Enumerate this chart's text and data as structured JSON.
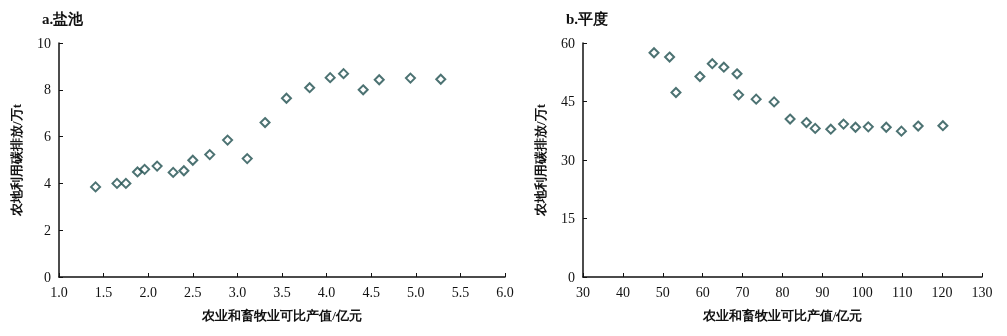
{
  "chart_data": [
    {
      "type": "scatter",
      "title": "a.盐池",
      "xlabel": "农业和畜牧业可比产值/亿元",
      "ylabel": "农地利用碳排放/万t",
      "marker": "diamond",
      "grid": false,
      "x": [
        1.41,
        1.65,
        1.75,
        1.88,
        1.96,
        2.1,
        2.28,
        2.4,
        2.5,
        2.69,
        2.89,
        3.11,
        3.31,
        3.55,
        3.81,
        4.04,
        4.19,
        4.41,
        4.59,
        4.94,
        5.28
      ],
      "series": [
        {
          "color": "#1f4f4f",
          "values": [
            3.85,
            4.0,
            4.0,
            4.49,
            4.6,
            4.74,
            4.47,
            4.54,
            4.99,
            5.23,
            5.85,
            5.06,
            6.6,
            7.64,
            8.09,
            8.52,
            8.69,
            8.0,
            8.43,
            8.5,
            8.45
          ]
        }
      ],
      "xlim": [
        1,
        6
      ],
      "xticks": [
        {
          "value": 1,
          "label": "1.0"
        },
        {
          "value": 1.5,
          "label": "1.5"
        },
        {
          "value": 2,
          "label": "2.0"
        },
        {
          "value": 2.5,
          "label": "2.5"
        },
        {
          "value": 3,
          "label": "3.0"
        },
        {
          "value": 3.5,
          "label": "3.5"
        },
        {
          "value": 4,
          "label": "4.0"
        },
        {
          "value": 4.5,
          "label": "4.5"
        },
        {
          "value": 5,
          "label": "5.0"
        },
        {
          "value": 5.5,
          "label": "5.5"
        },
        {
          "value": 6,
          "label": "6.0"
        }
      ],
      "ylim": [
        0,
        10
      ],
      "yticks": [
        0,
        2,
        4,
        6,
        8,
        10
      ]
    },
    {
      "type": "scatter",
      "title": "b.平度",
      "xlabel": "农业和畜牧业可比产值/亿元",
      "ylabel": "农地利用碳排放/万t",
      "marker": "diamond",
      "grid": false,
      "x": [
        47.8,
        51.7,
        53.3,
        59.3,
        62.4,
        65.3,
        68.6,
        69.0,
        73.4,
        77.9,
        81.9,
        86.0,
        88.2,
        92.1,
        95.3,
        98.3,
        101.5,
        106.0,
        109.8,
        114.0,
        120.2
      ],
      "series": [
        {
          "color": "#1f4f4f",
          "values": [
            57.5,
            56.4,
            47.3,
            51.4,
            54.7,
            53.8,
            52.1,
            46.7,
            45.6,
            44.9,
            40.5,
            39.6,
            38.1,
            37.9,
            39.2,
            38.4,
            38.5,
            38.4,
            37.4,
            38.7,
            38.8
          ]
        }
      ],
      "xlim": [
        30,
        130
      ],
      "xticks": [
        30,
        40,
        50,
        60,
        70,
        80,
        90,
        100,
        110,
        120,
        130
      ],
      "ylim": [
        0,
        60
      ],
      "yticks": [
        0,
        15,
        30,
        45,
        60
      ]
    }
  ]
}
